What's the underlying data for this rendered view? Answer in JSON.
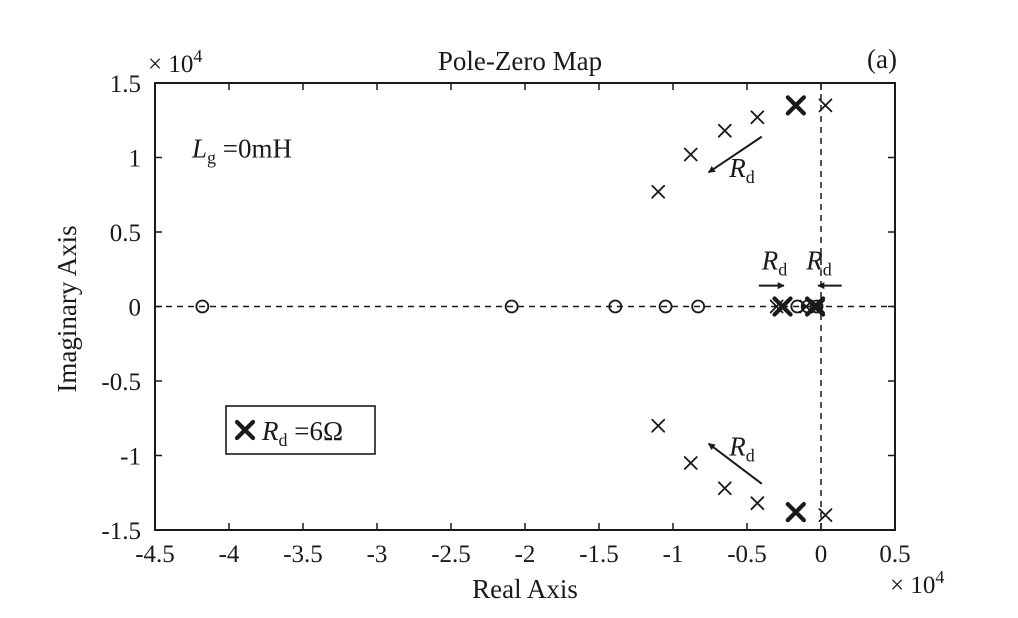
{
  "chart_data": {
    "type": "scatter",
    "title": "Pole-Zero Map",
    "panel_label": "(a)",
    "xlabel": "Real Axis",
    "ylabel": "Imaginary Axis",
    "x_exponent_label": "× 10",
    "x_exponent_power": "4",
    "y_exponent_label": "× 10",
    "y_exponent_power": "4",
    "xlim": [
      -4.5,
      0.5
    ],
    "ylim": [
      -1.5,
      1.5
    ],
    "xticks": [
      -4.5,
      -4,
      -3.5,
      -3,
      -2.5,
      -2,
      -1.5,
      -1,
      -0.5,
      0,
      0.5
    ],
    "xtick_labels": [
      "-4.5",
      "-4",
      "-3.5",
      "-3",
      "-2.5",
      "-2",
      "-1.5",
      "-1",
      "-0.5",
      "0",
      "0.5"
    ],
    "yticks": [
      1.5,
      1,
      0.5,
      0,
      -0.5,
      -1,
      -1.5
    ],
    "ytick_labels": [
      "1.5",
      "1",
      "0.5",
      "0",
      "-0.5",
      "-1",
      "-1.5"
    ],
    "grid": false,
    "series": [
      {
        "marker": "x",
        "values": [
          {
            "x": -1.1,
            "y": 0.77
          },
          {
            "x": -0.88,
            "y": 1.02
          },
          {
            "x": -0.65,
            "y": 1.18
          },
          {
            "x": -0.43,
            "y": 1.27
          },
          {
            "x": 0.03,
            "y": 1.35
          },
          {
            "x": -1.1,
            "y": -0.8
          },
          {
            "x": -0.88,
            "y": -1.05
          },
          {
            "x": -0.65,
            "y": -1.22
          },
          {
            "x": -0.43,
            "y": -1.32
          },
          {
            "x": 0.03,
            "y": -1.4
          },
          {
            "x": -0.3,
            "y": 0.0
          },
          {
            "x": -0.1,
            "y": 0.0
          },
          {
            "x": -0.02,
            "y": 0.0
          }
        ]
      },
      {
        "marker": "X-bold",
        "legend_label": "R",
        "legend_sub": "d",
        "legend_value": " =6Ω",
        "values": [
          {
            "x": -0.17,
            "y": 1.35
          },
          {
            "x": -0.17,
            "y": -1.38
          },
          {
            "x": -0.26,
            "y": 0.0
          },
          {
            "x": -0.04,
            "y": 0.0
          }
        ]
      },
      {
        "marker": "o",
        "values": [
          {
            "x": -4.18,
            "y": 0
          },
          {
            "x": -2.09,
            "y": 0
          },
          {
            "x": -1.39,
            "y": 0
          },
          {
            "x": -1.05,
            "y": 0
          },
          {
            "x": -0.83,
            "y": 0
          },
          {
            "x": -0.16,
            "y": 0
          },
          {
            "x": -0.09,
            "y": 0
          },
          {
            "x": -0.03,
            "y": 0
          }
        ]
      }
    ],
    "reference_lines": [
      {
        "orientation": "horizontal",
        "value": 0,
        "style": "dashed"
      },
      {
        "orientation": "vertical",
        "value": 0,
        "style": "dashed"
      }
    ],
    "annotations": [
      {
        "id": "lg",
        "text": "L",
        "sub": "g",
        "suffix": " =0mH",
        "x": -4.25,
        "y": 1.0
      },
      {
        "id": "rd-top",
        "text": "R",
        "sub": "d",
        "x": -0.62,
        "y": 0.87,
        "arrow_from": [
          -0.4,
          1.14
        ],
        "arrow_to": [
          -0.76,
          0.9
        ]
      },
      {
        "id": "rd-bottom",
        "text": "R",
        "sub": "d",
        "x": -0.62,
        "y": -1.0,
        "arrow_from": [
          -0.4,
          -1.19
        ],
        "arrow_to": [
          -0.76,
          -0.92
        ]
      },
      {
        "id": "rd-left",
        "text": "R",
        "sub": "d",
        "x": -0.4,
        "y": 0.25,
        "arrow_from": [
          -0.42,
          0.14
        ],
        "arrow_to": [
          -0.25,
          0.14
        ]
      },
      {
        "id": "rd-right",
        "text": "R",
        "sub": "d",
        "x": -0.1,
        "y": 0.25,
        "arrow_from": [
          0.14,
          0.14
        ],
        "arrow_to": [
          -0.02,
          0.14
        ]
      }
    ]
  }
}
